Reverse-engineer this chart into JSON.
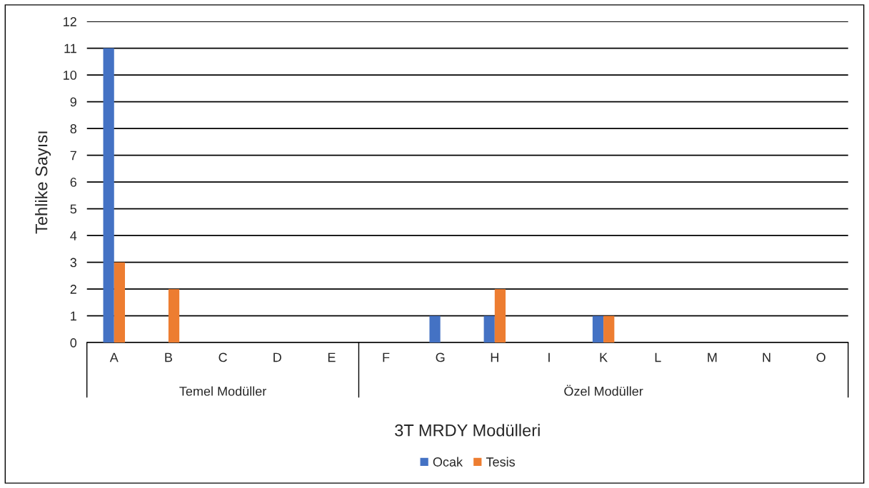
{
  "chart_data": {
    "type": "bar",
    "xlabel": "3T MRDY Modülleri",
    "ylabel": "Tehlike Sayısı",
    "categories": [
      "A",
      "B",
      "C",
      "D",
      "E",
      "F",
      "G",
      "H",
      "I",
      "K",
      "L",
      "M",
      "N",
      "O"
    ],
    "series": [
      {
        "name": "Ocak",
        "color": "#4472c4",
        "values": [
          11,
          0,
          0,
          0,
          0,
          0,
          1,
          1,
          0,
          1,
          0,
          0,
          0,
          0
        ]
      },
      {
        "name": "Tesis",
        "color": "#ed7d31",
        "values": [
          3,
          2,
          0,
          0,
          0,
          0,
          0,
          2,
          0,
          1,
          0,
          0,
          0,
          0
        ]
      }
    ],
    "annotations": [
      "Temel Modüller",
      "Özel Modüller"
    ],
    "ylim": [
      0,
      12
    ],
    "yticks": [
      0,
      1,
      2,
      3,
      4,
      5,
      6,
      7,
      8,
      9,
      10,
      11,
      12
    ],
    "grid": "y",
    "legend": "bottom"
  }
}
